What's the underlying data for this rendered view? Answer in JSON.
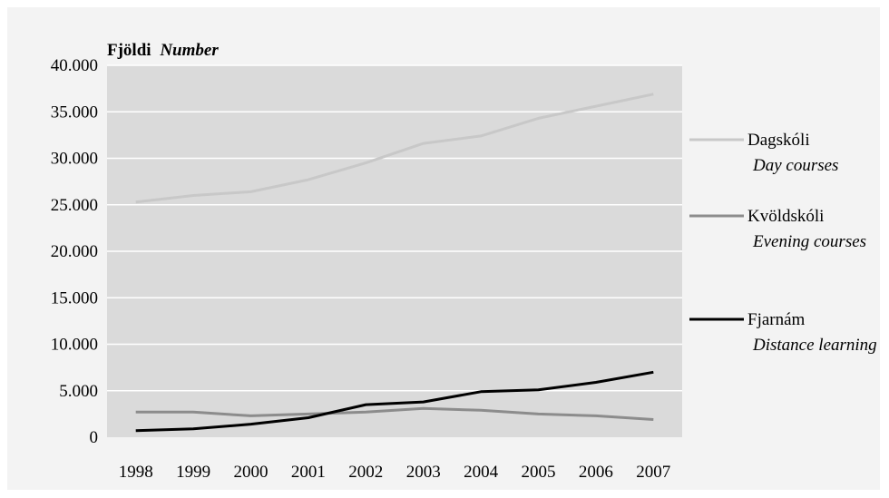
{
  "chart_data": {
    "type": "line",
    "title": "",
    "ylabel": "Fjöldi",
    "ylabel_en": "Number",
    "xlabel": "",
    "ylim": [
      0,
      40000
    ],
    "yticks": [
      0,
      5000,
      10000,
      15000,
      20000,
      25000,
      30000,
      35000,
      40000
    ],
    "ytick_labels": [
      "0",
      "5.000",
      "10.000",
      "15.000",
      "20.000",
      "25.000",
      "30.000",
      "35.000",
      "40.000"
    ],
    "categories": [
      "1998",
      "1999",
      "2000",
      "2001",
      "2002",
      "2003",
      "2004",
      "2005",
      "2006",
      "2007"
    ],
    "grid": true,
    "legend_position": "right",
    "series": [
      {
        "name": "Dagskóli",
        "name_en": "Day courses",
        "color": "#c8c8c8",
        "values": [
          25300,
          26000,
          26400,
          27700,
          29500,
          31600,
          32400,
          34300,
          35600,
          36900
        ]
      },
      {
        "name": "Kvöldskóli",
        "name_en": "Evening courses",
        "color": "#8c8c8c",
        "values": [
          2700,
          2700,
          2300,
          2500,
          2700,
          3100,
          2900,
          2500,
          2300,
          1900
        ]
      },
      {
        "name": "Fjarnám",
        "name_en": "Distance learning",
        "color": "#000000",
        "values": [
          700,
          900,
          1400,
          2100,
          3500,
          3800,
          4900,
          5100,
          5900,
          7000
        ]
      }
    ]
  }
}
